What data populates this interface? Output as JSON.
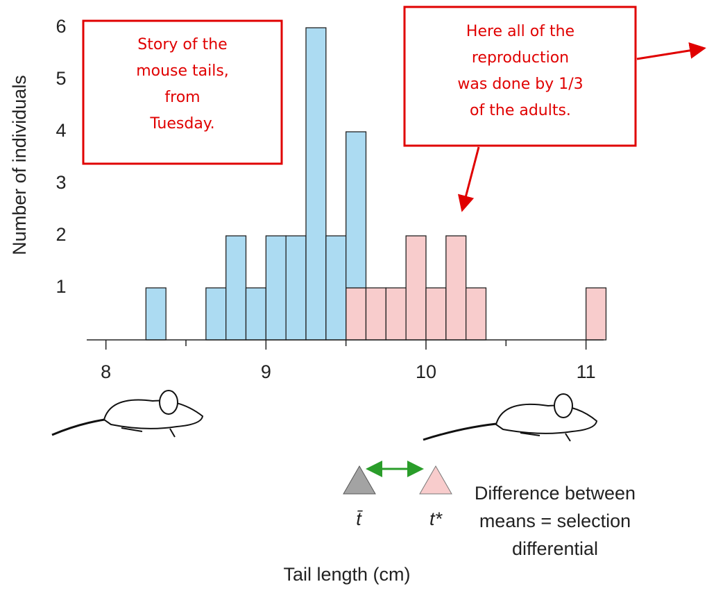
{
  "chart_data": {
    "type": "histogram",
    "bins": [
      8.25,
      8.375,
      8.5,
      8.625,
      8.75,
      8.875,
      9,
      9.125,
      9.25,
      9.375,
      9.5,
      9.625,
      9.75,
      9.875,
      10,
      10.125,
      10.25,
      10.375,
      10.5,
      10.625,
      10.75,
      10.875,
      11,
      11.125
    ],
    "series": [
      {
        "color": "#f8cccc",
        "values": [
          0,
          0,
          0,
          0,
          0,
          0,
          0,
          0,
          0,
          0,
          1,
          1,
          1,
          2,
          1,
          2,
          1,
          0,
          0,
          0,
          0,
          0,
          1
        ]
      },
      {
        "color": "#acdbf2",
        "values": [
          1,
          0,
          0,
          1,
          2,
          1,
          2,
          2,
          6,
          2,
          3,
          0,
          0,
          0,
          0,
          0,
          0,
          0,
          0,
          0,
          0,
          0,
          0
        ]
      }
    ],
    "stacked": true,
    "xlim": [
      7.88,
      11.11
    ],
    "xticks": [
      8,
      9,
      10,
      11
    ],
    "xminorticks": [
      8.5,
      9.5,
      10.5
    ],
    "ylim": [
      0,
      6
    ],
    "yticks": [
      1,
      2,
      3,
      4,
      5,
      6
    ],
    "xlabel": "Tail length (cm)",
    "ylabel": "Number of individuals",
    "annotations": [
      [
        "Story of the",
        "mouse tails,",
        "from",
        "Tuesday."
      ],
      [
        "Here all of the",
        "reproduction",
        "was done by 1/3",
        "of the adults."
      ]
    ],
    "mean_label": "t̄",
    "selected_mean_label": "t*",
    "note": [
      "Difference between",
      "means = selection",
      "differential"
    ]
  }
}
